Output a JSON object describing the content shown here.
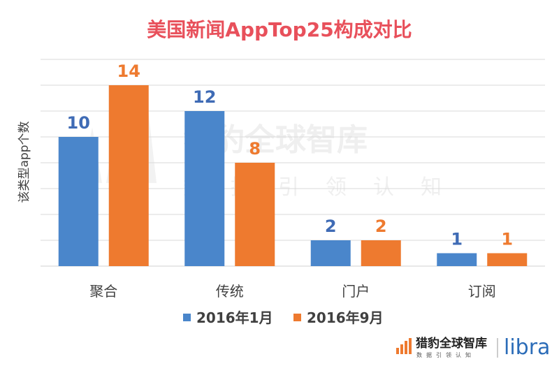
{
  "chart_data": {
    "type": "bar",
    "title": "美国新闻AppTop25构成对比",
    "xlabel": "",
    "ylabel": "该类型app个数",
    "categories": [
      "聚合",
      "传统",
      "门户",
      "订阅"
    ],
    "series": [
      {
        "name": "2016年1月",
        "values": [
          10,
          12,
          2,
          1
        ],
        "color": "#4A86CB"
      },
      {
        "name": "2016年9月",
        "values": [
          14,
          8,
          2,
          1
        ],
        "color": "#EE7A2F"
      }
    ],
    "ylim": [
      0,
      16
    ],
    "grid": true,
    "legend": "bottom-center",
    "value_label_colors": [
      "#3F6BB5",
      "#EE7A2F"
    ]
  },
  "colors": {
    "title": "#E8505B",
    "axis_text": "#404040",
    "grid": "#D9D9D9",
    "watermark": "#EFEFEF"
  },
  "watermark": {
    "main": "猎豹全球智库",
    "sub": "数据引领认知"
  },
  "footer": {
    "brand_main": "猎豹全球智库",
    "brand_sub": "数据引领认知",
    "libra": "libra"
  }
}
